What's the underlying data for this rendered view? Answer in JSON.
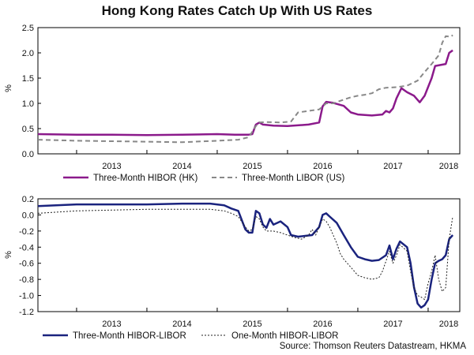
{
  "title": "Hong Kong Rates Catch Up With US Rates",
  "source": "Source: Thomson Reuters Datastream, HKMA",
  "chart_data": [
    {
      "type": "line",
      "ylabel": "%",
      "ylim": [
        0,
        2.5
      ],
      "yticks": [
        "0.0",
        "0.5",
        "1.0",
        "1.5",
        "2.0",
        "2.5"
      ],
      "xlim": [
        2012.45,
        2018.45
      ],
      "xticks": [
        "2013",
        "2014",
        "2015",
        "2016",
        "2017",
        "2018"
      ],
      "grid": false,
      "legend_position": "bottom",
      "series": [
        {
          "name": "Three-Month HIBOR (HK)",
          "color": "#8b1a8b",
          "style": "solid",
          "points": [
            [
              2012.45,
              0.39
            ],
            [
              2013.0,
              0.38
            ],
            [
              2013.5,
              0.38
            ],
            [
              2014.0,
              0.37
            ],
            [
              2014.5,
              0.38
            ],
            [
              2015.0,
              0.39
            ],
            [
              2015.25,
              0.38
            ],
            [
              2015.45,
              0.38
            ],
            [
              2015.5,
              0.39
            ],
            [
              2015.55,
              0.58
            ],
            [
              2015.6,
              0.62
            ],
            [
              2015.65,
              0.58
            ],
            [
              2015.8,
              0.56
            ],
            [
              2016.0,
              0.55
            ],
            [
              2016.3,
              0.58
            ],
            [
              2016.45,
              0.62
            ],
            [
              2016.5,
              0.94
            ],
            [
              2016.55,
              1.03
            ],
            [
              2016.65,
              1.01
            ],
            [
              2016.8,
              0.95
            ],
            [
              2016.9,
              0.82
            ],
            [
              2017.0,
              0.78
            ],
            [
              2017.2,
              0.76
            ],
            [
              2017.35,
              0.78
            ],
            [
              2017.4,
              0.85
            ],
            [
              2017.45,
              0.82
            ],
            [
              2017.5,
              0.9
            ],
            [
              2017.55,
              1.1
            ],
            [
              2017.62,
              1.3
            ],
            [
              2017.7,
              1.22
            ],
            [
              2017.8,
              1.15
            ],
            [
              2017.88,
              1.02
            ],
            [
              2017.95,
              1.15
            ],
            [
              2018.05,
              1.5
            ],
            [
              2018.1,
              1.74
            ],
            [
              2018.25,
              1.78
            ],
            [
              2018.3,
              2.0
            ],
            [
              2018.35,
              2.05
            ]
          ]
        },
        {
          "name": "Three-Month LIBOR (US)",
          "color": "#888888",
          "style": "dashed",
          "points": [
            [
              2012.45,
              0.28
            ],
            [
              2013.0,
              0.26
            ],
            [
              2013.5,
              0.25
            ],
            [
              2014.0,
              0.24
            ],
            [
              2014.5,
              0.23
            ],
            [
              2015.0,
              0.26
            ],
            [
              2015.3,
              0.28
            ],
            [
              2015.45,
              0.33
            ],
            [
              2015.55,
              0.55
            ],
            [
              2015.6,
              0.62
            ],
            [
              2015.7,
              0.63
            ],
            [
              2015.9,
              0.62
            ],
            [
              2016.05,
              0.64
            ],
            [
              2016.15,
              0.82
            ],
            [
              2016.3,
              0.85
            ],
            [
              2016.45,
              0.88
            ],
            [
              2016.55,
              1.0
            ],
            [
              2016.65,
              1.0
            ],
            [
              2016.75,
              1.05
            ],
            [
              2016.9,
              1.12
            ],
            [
              2017.0,
              1.15
            ],
            [
              2017.1,
              1.17
            ],
            [
              2017.2,
              1.2
            ],
            [
              2017.3,
              1.28
            ],
            [
              2017.4,
              1.31
            ],
            [
              2017.55,
              1.32
            ],
            [
              2017.7,
              1.35
            ],
            [
              2017.85,
              1.45
            ],
            [
              2017.95,
              1.62
            ],
            [
              2018.05,
              1.78
            ],
            [
              2018.15,
              1.95
            ],
            [
              2018.2,
              2.2
            ],
            [
              2018.25,
              2.33
            ],
            [
              2018.32,
              2.32
            ],
            [
              2018.35,
              2.35
            ]
          ]
        }
      ]
    },
    {
      "type": "line",
      "ylabel": "%",
      "ylim": [
        -1.2,
        0.2
      ],
      "yticks": [
        "0.2",
        "0.0",
        "-0.2",
        "-0.4",
        "-0.6",
        "-0.8",
        "-1.0",
        "-1.2"
      ],
      "xlim": [
        2012.45,
        2018.45
      ],
      "xticks": [
        "2013",
        "2014",
        "2015",
        "2016",
        "2017",
        "2018"
      ],
      "grid": false,
      "legend_position": "bottom",
      "series": [
        {
          "name": "Three-Month HIBOR-LIBOR",
          "color": "#1a237e",
          "style": "solid",
          "points": [
            [
              2012.45,
              0.11
            ],
            [
              2013.0,
              0.13
            ],
            [
              2013.5,
              0.13
            ],
            [
              2014.0,
              0.13
            ],
            [
              2014.5,
              0.14
            ],
            [
              2014.9,
              0.14
            ],
            [
              2015.1,
              0.12
            ],
            [
              2015.2,
              0.08
            ],
            [
              2015.3,
              0.05
            ],
            [
              2015.4,
              -0.18
            ],
            [
              2015.45,
              -0.22
            ],
            [
              2015.5,
              -0.22
            ],
            [
              2015.55,
              0.05
            ],
            [
              2015.6,
              0.02
            ],
            [
              2015.65,
              -0.12
            ],
            [
              2015.7,
              -0.16
            ],
            [
              2015.75,
              -0.05
            ],
            [
              2015.8,
              -0.12
            ],
            [
              2015.9,
              -0.08
            ],
            [
              2016.0,
              -0.15
            ],
            [
              2016.05,
              -0.25
            ],
            [
              2016.15,
              -0.27
            ],
            [
              2016.25,
              -0.26
            ],
            [
              2016.35,
              -0.25
            ],
            [
              2016.45,
              -0.15
            ],
            [
              2016.5,
              0.0
            ],
            [
              2016.55,
              0.02
            ],
            [
              2016.6,
              -0.02
            ],
            [
              2016.7,
              -0.1
            ],
            [
              2016.8,
              -0.25
            ],
            [
              2016.9,
              -0.4
            ],
            [
              2017.0,
              -0.52
            ],
            [
              2017.1,
              -0.55
            ],
            [
              2017.2,
              -0.57
            ],
            [
              2017.3,
              -0.56
            ],
            [
              2017.4,
              -0.5
            ],
            [
              2017.45,
              -0.38
            ],
            [
              2017.5,
              -0.55
            ],
            [
              2017.55,
              -0.42
            ],
            [
              2017.6,
              -0.33
            ],
            [
              2017.7,
              -0.4
            ],
            [
              2017.75,
              -0.6
            ],
            [
              2017.8,
              -0.9
            ],
            [
              2017.85,
              -1.1
            ],
            [
              2017.9,
              -1.15
            ],
            [
              2017.95,
              -1.12
            ],
            [
              2018.0,
              -1.05
            ],
            [
              2018.05,
              -0.8
            ],
            [
              2018.1,
              -0.6
            ],
            [
              2018.15,
              -0.57
            ],
            [
              2018.2,
              -0.55
            ],
            [
              2018.25,
              -0.5
            ],
            [
              2018.3,
              -0.3
            ],
            [
              2018.35,
              -0.25
            ]
          ]
        },
        {
          "name": "One-Month HIBOR-LIBOR",
          "color": "#222222",
          "style": "dotted",
          "points": [
            [
              2012.45,
              0.02
            ],
            [
              2013.0,
              0.05
            ],
            [
              2013.5,
              0.06
            ],
            [
              2014.0,
              0.07
            ],
            [
              2014.5,
              0.07
            ],
            [
              2014.9,
              0.07
            ],
            [
              2015.1,
              0.05
            ],
            [
              2015.2,
              0.02
            ],
            [
              2015.3,
              -0.02
            ],
            [
              2015.4,
              -0.15
            ],
            [
              2015.45,
              -0.2
            ],
            [
              2015.5,
              -0.18
            ],
            [
              2015.55,
              -0.02
            ],
            [
              2015.6,
              -0.05
            ],
            [
              2015.65,
              -0.15
            ],
            [
              2015.7,
              -0.2
            ],
            [
              2015.8,
              -0.2
            ],
            [
              2015.9,
              -0.22
            ],
            [
              2016.0,
              -0.25
            ],
            [
              2016.1,
              -0.28
            ],
            [
              2016.2,
              -0.3
            ],
            [
              2016.3,
              -0.25
            ],
            [
              2016.35,
              -0.18
            ],
            [
              2016.4,
              -0.25
            ],
            [
              2016.5,
              -0.05
            ],
            [
              2016.55,
              -0.08
            ],
            [
              2016.6,
              -0.15
            ],
            [
              2016.7,
              -0.35
            ],
            [
              2016.75,
              -0.48
            ],
            [
              2016.8,
              -0.55
            ],
            [
              2016.9,
              -0.65
            ],
            [
              2017.0,
              -0.75
            ],
            [
              2017.1,
              -0.78
            ],
            [
              2017.2,
              -0.8
            ],
            [
              2017.3,
              -0.78
            ],
            [
              2017.35,
              -0.7
            ],
            [
              2017.45,
              -0.45
            ],
            [
              2017.5,
              -0.6
            ],
            [
              2017.55,
              -0.5
            ],
            [
              2017.6,
              -0.37
            ],
            [
              2017.7,
              -0.45
            ],
            [
              2017.75,
              -0.7
            ],
            [
              2017.8,
              -0.9
            ],
            [
              2017.85,
              -1.0
            ],
            [
              2017.9,
              -1.02
            ],
            [
              2017.95,
              -1.05
            ],
            [
              2018.0,
              -0.85
            ],
            [
              2018.05,
              -0.7
            ],
            [
              2018.1,
              -0.5
            ],
            [
              2018.15,
              -0.8
            ],
            [
              2018.2,
              -0.95
            ],
            [
              2018.25,
              -0.9
            ],
            [
              2018.3,
              -0.3
            ],
            [
              2018.35,
              -0.02
            ]
          ]
        }
      ]
    }
  ]
}
